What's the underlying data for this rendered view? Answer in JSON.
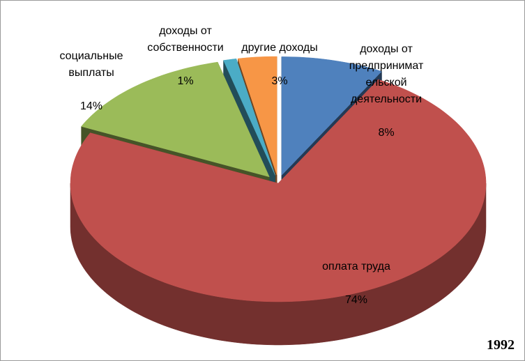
{
  "chart_data": {
    "type": "pie",
    "title": "",
    "subtitle": "",
    "year": "1992",
    "slices": [
      {
        "name": "доходы от предпринимательской деятельности",
        "label": "доходы от\nпредпринимат\nельской\nдеятельности",
        "value": 8,
        "value_text": "8%",
        "color": "#4f81bd"
      },
      {
        "name": "оплата труда",
        "label": "оплата труда",
        "value": 74,
        "value_text": "74%",
        "color": "#c0504d"
      },
      {
        "name": "социальные выплаты",
        "label": "социальные\nвыплаты",
        "value": 14,
        "value_text": "14%",
        "color": "#9bbb59"
      },
      {
        "name": "доходы от собственности",
        "label": "доходы от\nсобственности",
        "value": 1,
        "value_text": "1%",
        "color": "#4bacc6"
      },
      {
        "name": "другие доходы",
        "label": "другие доходы",
        "value": 3,
        "value_text": "3%",
        "color": "#f79646"
      }
    ]
  }
}
